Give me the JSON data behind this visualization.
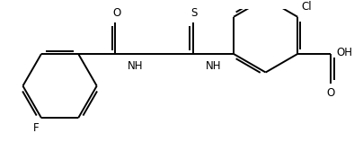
{
  "bg_color": "#ffffff",
  "line_color": "#000000",
  "line_width": 1.4,
  "font_size": 8.5,
  "figsize": [
    4.04,
    1.58
  ],
  "dpi": 100,
  "xlim": [
    0.0,
    1.0
  ],
  "ylim": [
    0.0,
    1.0
  ]
}
